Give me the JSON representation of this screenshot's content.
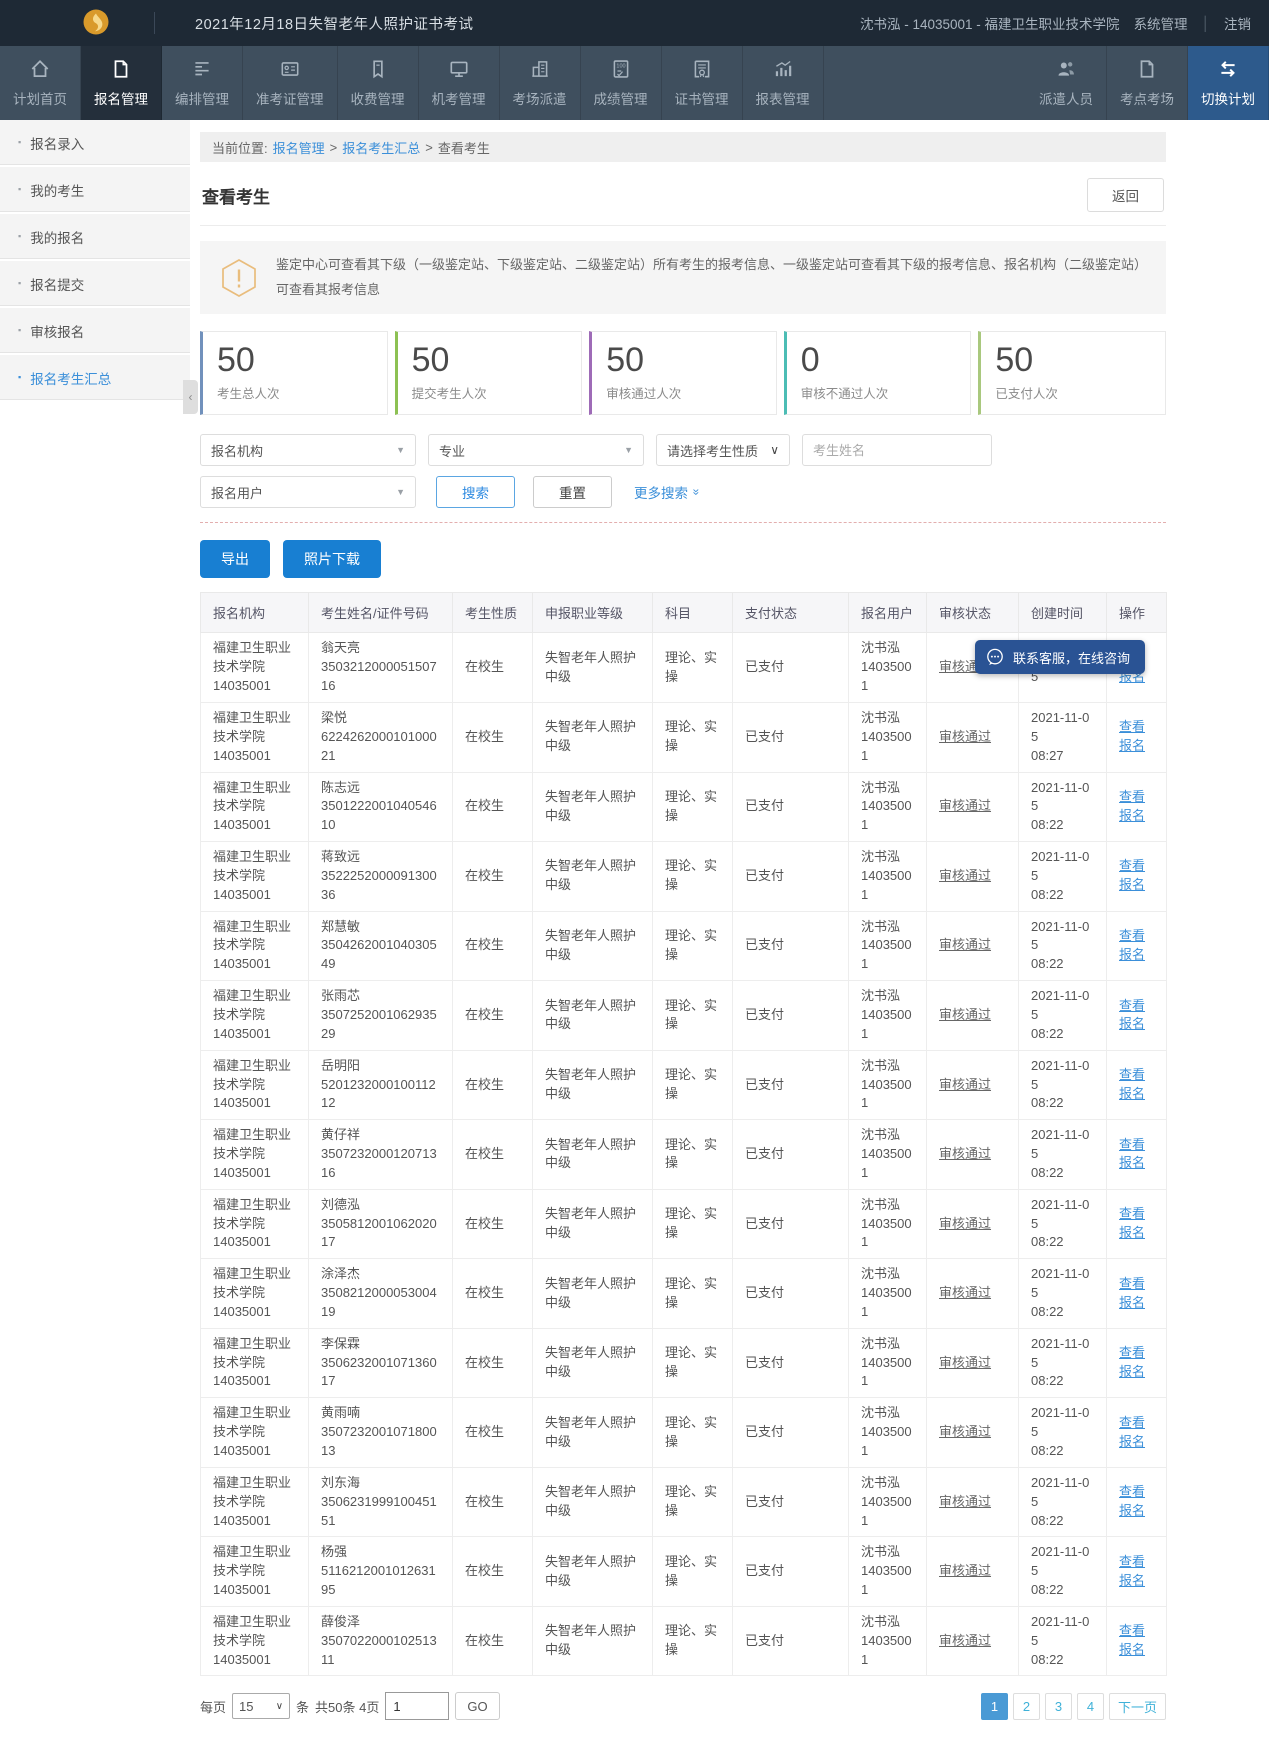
{
  "header": {
    "title": "2021年12月18日失智老年人照护证书考试",
    "user_info": "沈书泓 - 14035001 - 福建卫生职业技术学院",
    "system_link": "系统管理",
    "logout": "注销"
  },
  "nav": {
    "items": [
      {
        "id": "plan-home",
        "label": "计划首页",
        "icon": "home-icon",
        "active": false
      },
      {
        "id": "registration-management",
        "label": "报名管理",
        "icon": "document-icon",
        "active": true
      },
      {
        "id": "scheduling-management",
        "label": "编排管理",
        "icon": "list-icon",
        "active": false
      },
      {
        "id": "admission-ticket-management",
        "label": "准考证管理",
        "icon": "id-card-icon",
        "active": false
      },
      {
        "id": "fee-management",
        "label": "收费管理",
        "icon": "ticket-icon",
        "active": false
      },
      {
        "id": "computer-exam-management",
        "label": "机考管理",
        "icon": "monitor-icon",
        "active": false
      },
      {
        "id": "exam-room-dispatch",
        "label": "考场派遣",
        "icon": "building-icon",
        "active": false
      },
      {
        "id": "score-management",
        "label": "成绩管理",
        "icon": "score-sheet-icon",
        "active": false
      },
      {
        "id": "certificate-management",
        "label": "证书管理",
        "icon": "certificate-icon",
        "active": false
      },
      {
        "id": "report-management",
        "label": "报表管理",
        "icon": "bar-chart-icon",
        "active": false
      }
    ],
    "right_items": [
      {
        "id": "dispatch-personnel",
        "label": "派遣人员",
        "icon": "people-icon"
      },
      {
        "id": "exam-site-rooms",
        "label": "考点考场",
        "icon": "folder-icon"
      },
      {
        "id": "switch-plan",
        "label": "切换计划",
        "icon": "switch-icon",
        "highlight": true
      }
    ]
  },
  "sidebar": {
    "items": [
      {
        "id": "registration-entry",
        "label": "报名录入",
        "active": false
      },
      {
        "id": "my-candidates",
        "label": "我的考生",
        "active": false
      },
      {
        "id": "my-registrations",
        "label": "我的报名",
        "active": false
      },
      {
        "id": "registration-submit",
        "label": "报名提交",
        "active": false
      },
      {
        "id": "audit-registration",
        "label": "审核报名",
        "active": false
      },
      {
        "id": "registration-summary",
        "label": "报名考生汇总",
        "active": true
      }
    ]
  },
  "breadcrumb": {
    "prefix": "当前位置:",
    "link_registration": "报名管理",
    "link_summary": "报名考生汇总",
    "separator": ">",
    "current": "查看考生"
  },
  "page": {
    "title": "查看考生",
    "back_button": "返回",
    "notice": "鉴定中心可查看其下级（一级鉴定站、下级鉴定站、二级鉴定站）所有考生的报考信息、一级鉴定站可查看其下级的报考信息、报名机构（二级鉴定站）可查看其报考信息"
  },
  "stats": [
    {
      "value": "50",
      "label": "考生总人次",
      "color": "#7191bc"
    },
    {
      "value": "50",
      "label": "提交考生人次",
      "color": "#8dc153"
    },
    {
      "value": "50",
      "label": "审核通过人次",
      "color": "#9e6bb7"
    },
    {
      "value": "0",
      "label": "审核不通过人次",
      "color": "#4cbdb5"
    },
    {
      "value": "50",
      "label": "已支付人次",
      "color": "#a9c87e"
    }
  ],
  "filters": {
    "org_select": "报名机构",
    "major_select": "专业",
    "nature_select": "请选择考生性质",
    "name_placeholder": "考生姓名",
    "user_select": "报名用户",
    "search_button": "搜索",
    "reset_button": "重置",
    "more_search": "更多搜索",
    "more_search_icon": "»"
  },
  "actions": {
    "export_button": "导出",
    "photo_download_button": "照片下载"
  },
  "table": {
    "headers": [
      "报名机构",
      "考生姓名/证件号码",
      "考生性质",
      "申报职业等级",
      "科目",
      "支付状态",
      "报名用户",
      "审核状态",
      "创建时间",
      "操作"
    ],
    "rows": [
      {
        "org_name": "福建卫生职业技术学院",
        "org_code": "14035001",
        "name": "翁天亮",
        "id_number": "350321200005150716",
        "nature": "在校生",
        "level": "失智老年人照护中级",
        "subject": "理论、实操",
        "payment": "已支付",
        "user_name": "沈书泓",
        "user_code": "14035001",
        "audit": "审核通过",
        "created_date": "2021-11-05",
        "created_time": "",
        "action": "查看报名"
      },
      {
        "org_name": "福建卫生职业技术学院",
        "org_code": "14035001",
        "name": "梁悦",
        "id_number": "622426200010100021",
        "nature": "在校生",
        "level": "失智老年人照护中级",
        "subject": "理论、实操",
        "payment": "已支付",
        "user_name": "沈书泓",
        "user_code": "14035001",
        "audit": "审核通过",
        "created_date": "2021-11-05",
        "created_time": "08:27",
        "action": "查看报名"
      },
      {
        "org_name": "福建卫生职业技术学院",
        "org_code": "14035001",
        "name": "陈志远",
        "id_number": "350122200104054610",
        "nature": "在校生",
        "level": "失智老年人照护中级",
        "subject": "理论、实操",
        "payment": "已支付",
        "user_name": "沈书泓",
        "user_code": "14035001",
        "audit": "审核通过",
        "created_date": "2021-11-05",
        "created_time": "08:22",
        "action": "查看报名"
      },
      {
        "org_name": "福建卫生职业技术学院",
        "org_code": "14035001",
        "name": "蒋致远",
        "id_number": "352225200009130036",
        "nature": "在校生",
        "level": "失智老年人照护中级",
        "subject": "理论、实操",
        "payment": "已支付",
        "user_name": "沈书泓",
        "user_code": "14035001",
        "audit": "审核通过",
        "created_date": "2021-11-05",
        "created_time": "08:22",
        "action": "查看报名"
      },
      {
        "org_name": "福建卫生职业技术学院",
        "org_code": "14035001",
        "name": "郑慧敏",
        "id_number": "350426200104030549",
        "nature": "在校生",
        "level": "失智老年人照护中级",
        "subject": "理论、实操",
        "payment": "已支付",
        "user_name": "沈书泓",
        "user_code": "14035001",
        "audit": "审核通过",
        "created_date": "2021-11-05",
        "created_time": "08:22",
        "action": "查看报名"
      },
      {
        "org_name": "福建卫生职业技术学院",
        "org_code": "14035001",
        "name": "张雨芯",
        "id_number": "350725200106293529",
        "nature": "在校生",
        "level": "失智老年人照护中级",
        "subject": "理论、实操",
        "payment": "已支付",
        "user_name": "沈书泓",
        "user_code": "14035001",
        "audit": "审核通过",
        "created_date": "2021-11-05",
        "created_time": "08:22",
        "action": "查看报名"
      },
      {
        "org_name": "福建卫生职业技术学院",
        "org_code": "14035001",
        "name": "岳明阳",
        "id_number": "520123200010011212",
        "nature": "在校生",
        "level": "失智老年人照护中级",
        "subject": "理论、实操",
        "payment": "已支付",
        "user_name": "沈书泓",
        "user_code": "14035001",
        "audit": "审核通过",
        "created_date": "2021-11-05",
        "created_time": "08:22",
        "action": "查看报名"
      },
      {
        "org_name": "福建卫生职业技术学院",
        "org_code": "14035001",
        "name": "黄仔祥",
        "id_number": "350723200012071316",
        "nature": "在校生",
        "level": "失智老年人照护中级",
        "subject": "理论、实操",
        "payment": "已支付",
        "user_name": "沈书泓",
        "user_code": "14035001",
        "audit": "审核通过",
        "created_date": "2021-11-05",
        "created_time": "08:22",
        "action": "查看报名"
      },
      {
        "org_name": "福建卫生职业技术学院",
        "org_code": "14035001",
        "name": "刘德泓",
        "id_number": "350581200106202017",
        "nature": "在校生",
        "level": "失智老年人照护中级",
        "subject": "理论、实操",
        "payment": "已支付",
        "user_name": "沈书泓",
        "user_code": "14035001",
        "audit": "审核通过",
        "created_date": "2021-11-05",
        "created_time": "08:22",
        "action": "查看报名"
      },
      {
        "org_name": "福建卫生职业技术学院",
        "org_code": "14035001",
        "name": "涂泽杰",
        "id_number": "350821200005300419",
        "nature": "在校生",
        "level": "失智老年人照护中级",
        "subject": "理论、实操",
        "payment": "已支付",
        "user_name": "沈书泓",
        "user_code": "14035001",
        "audit": "审核通过",
        "created_date": "2021-11-05",
        "created_time": "08:22",
        "action": "查看报名"
      },
      {
        "org_name": "福建卫生职业技术学院",
        "org_code": "14035001",
        "name": "李保霖",
        "id_number": "350623200107136017",
        "nature": "在校生",
        "level": "失智老年人照护中级",
        "subject": "理论、实操",
        "payment": "已支付",
        "user_name": "沈书泓",
        "user_code": "14035001",
        "audit": "审核通过",
        "created_date": "2021-11-05",
        "created_time": "08:22",
        "action": "查看报名"
      },
      {
        "org_name": "福建卫生职业技术学院",
        "org_code": "14035001",
        "name": "黄雨喃",
        "id_number": "350723200107180013",
        "nature": "在校生",
        "level": "失智老年人照护中级",
        "subject": "理论、实操",
        "payment": "已支付",
        "user_name": "沈书泓",
        "user_code": "14035001",
        "audit": "审核通过",
        "created_date": "2021-11-05",
        "created_time": "08:22",
        "action": "查看报名"
      },
      {
        "org_name": "福建卫生职业技术学院",
        "org_code": "14035001",
        "name": "刘东海",
        "id_number": "350623199910045151",
        "nature": "在校生",
        "level": "失智老年人照护中级",
        "subject": "理论、实操",
        "payment": "已支付",
        "user_name": "沈书泓",
        "user_code": "14035001",
        "audit": "审核通过",
        "created_date": "2021-11-05",
        "created_time": "08:22",
        "action": "查看报名"
      },
      {
        "org_name": "福建卫生职业技术学院",
        "org_code": "14035001",
        "name": "杨强",
        "id_number": "511621200101263195",
        "nature": "在校生",
        "level": "失智老年人照护中级",
        "subject": "理论、实操",
        "payment": "已支付",
        "user_name": "沈书泓",
        "user_code": "14035001",
        "audit": "审核通过",
        "created_date": "2021-11-05",
        "created_time": "08:22",
        "action": "查看报名"
      },
      {
        "org_name": "福建卫生职业技术学院",
        "org_code": "14035001",
        "name": "薛俊泽",
        "id_number": "350702200010251311",
        "nature": "在校生",
        "level": "失智老年人照护中级",
        "subject": "理论、实操",
        "payment": "已支付",
        "user_name": "沈书泓",
        "user_code": "14035001",
        "audit": "审核通过",
        "created_date": "2021-11-05",
        "created_time": "08:22",
        "action": "查看报名"
      }
    ]
  },
  "chat_widget": {
    "label": "联系客服，在线咨询"
  },
  "pagination": {
    "per_page_prefix": "每页",
    "per_page_value": "15",
    "per_page_suffix": "条",
    "total_text": "共50条 4页",
    "page_input_value": "1",
    "go_button": "GO",
    "pages": [
      "1",
      "2",
      "3",
      "4"
    ],
    "active_page": "1",
    "next_label": "下一页"
  }
}
